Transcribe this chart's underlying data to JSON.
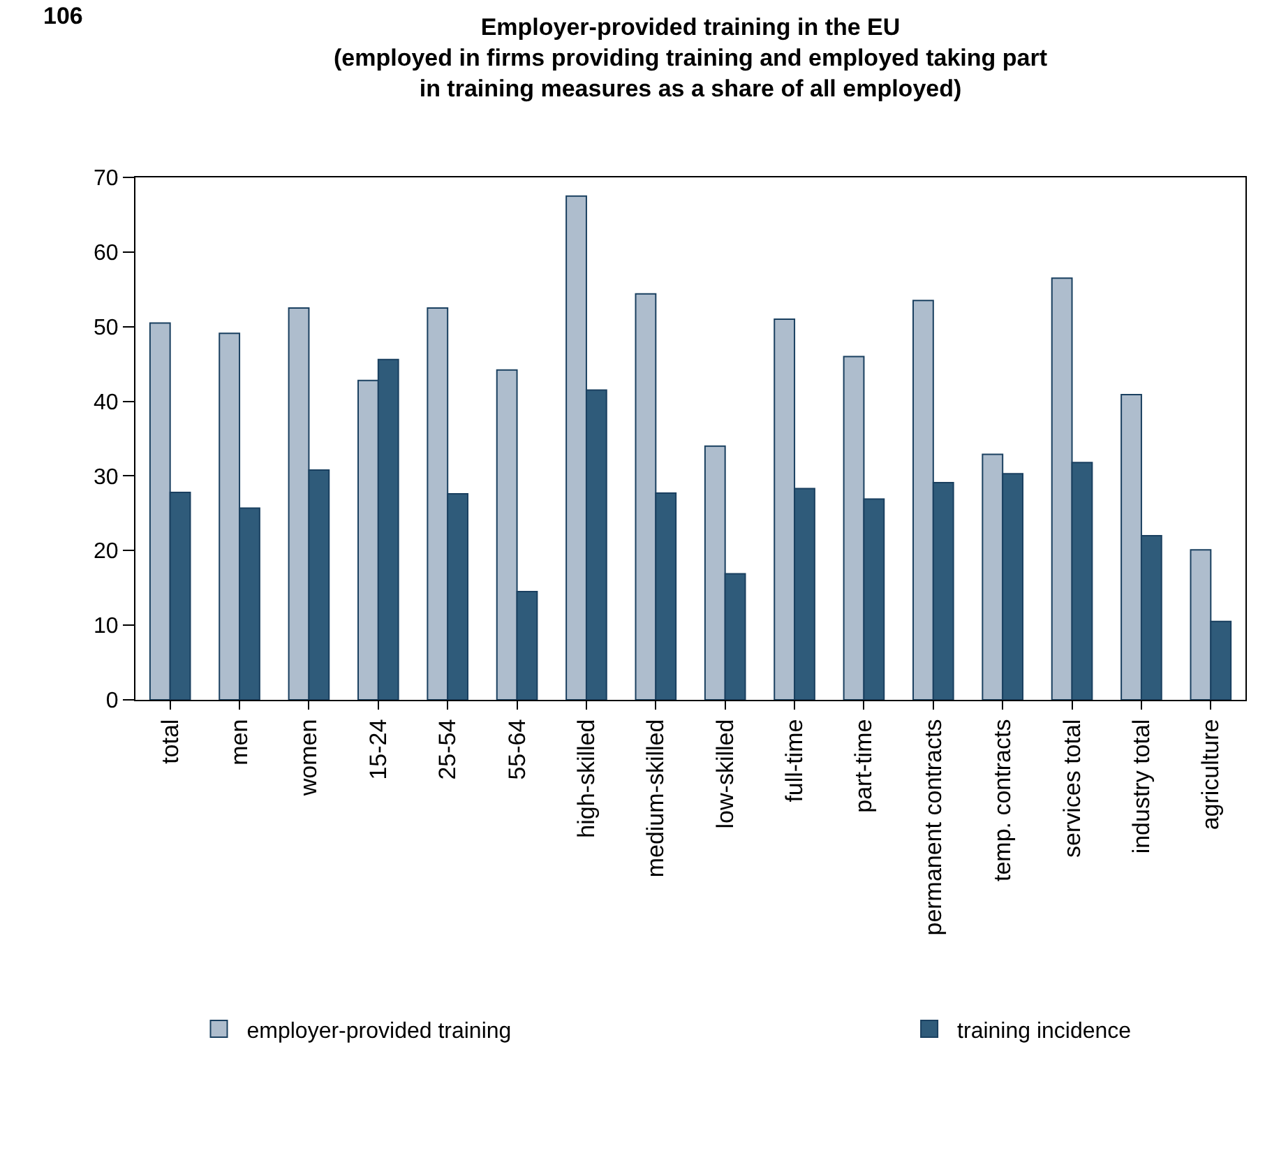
{
  "chart_data": {
    "type": "bar",
    "title": "Employer-provided training in the EU\n(employed in firms providing training and employed taking part\nin training measures as a share of all employed)",
    "annotations": [
      "106"
    ],
    "categories": [
      "total",
      "men",
      "women",
      "15-24",
      "25-54",
      "55-64",
      "high-skilled",
      "medium-skilled",
      "low-skilled",
      "full-time",
      "part-time",
      "permanent contracts",
      "temp. contracts",
      "services total",
      "industry total",
      "agriculture"
    ],
    "series": [
      {
        "name": "employer-provided training",
        "color": "#aebdcd",
        "values": [
          50.5,
          49.1,
          52.5,
          42.8,
          52.5,
          44.2,
          67.5,
          54.4,
          34.0,
          51.0,
          46.0,
          53.5,
          32.9,
          56.5,
          40.9,
          20.1
        ]
      },
      {
        "name": "training incidence",
        "color": "#2f5b7a",
        "values": [
          27.8,
          25.7,
          30.8,
          45.6,
          27.6,
          14.5,
          41.5,
          27.7,
          16.9,
          28.3,
          26.9,
          29.1,
          30.3,
          31.8,
          22.0,
          10.5
        ]
      }
    ],
    "ylim": [
      0,
      70
    ],
    "yticks": [
      0,
      10,
      20,
      30,
      40,
      50,
      60,
      70
    ],
    "legend": "bottom"
  }
}
